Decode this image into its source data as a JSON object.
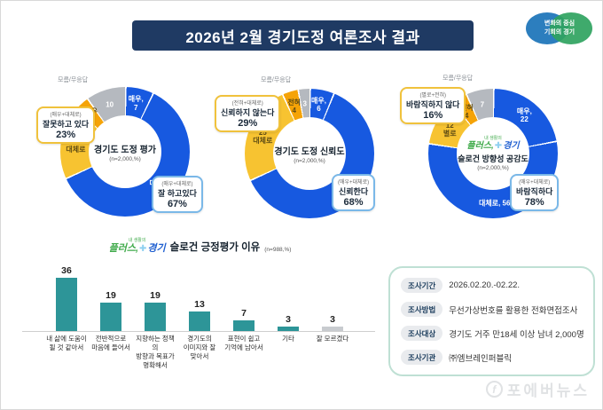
{
  "header": {
    "title": "2026년 2월 경기도정 여론조사 결과"
  },
  "gg_logo": {
    "line1": "변화의 중심",
    "line2": "기회의 경기"
  },
  "slogan_logo": {
    "tagline": "내 생활의",
    "plus_text": "플러스,",
    "plus_symbol": "✚",
    "region": "경기"
  },
  "colors": {
    "blue": "#1759e0",
    "yellow": "#f7c331",
    "orange": "#f5a307",
    "gray": "#b5b9bf",
    "navy": "#1f3a63",
    "teal": "#2d9598",
    "bar_gray": "#c8cbcf"
  },
  "chart_data": [
    {
      "type": "pie",
      "style": "donut",
      "title": "경기도 도정 평가",
      "n_label": "(n=2,000,%)",
      "outside_label": "모름/무응답",
      "segments": [
        {
          "name": "매우",
          "value": 7,
          "color": "blue",
          "lines": "매우,\n7"
        },
        {
          "name": "대체로",
          "value": 61,
          "color": "blue",
          "lines": "대체로,\n61"
        },
        {
          "name": "대체로",
          "value": 18,
          "color": "yellow",
          "lines": "18\n대체로"
        },
        {
          "name": "매우",
          "value": 4,
          "color": "orange",
          "lines": "매우\n4"
        },
        {
          "name": "모름/무응답",
          "value": 10,
          "color": "gray",
          "lines": "10"
        }
      ],
      "negative_callout": {
        "formula": "(매우+대체로)",
        "label": "잘못하고 있다",
        "pct": "23%"
      },
      "positive_callout": {
        "formula": "(매우+대체로)",
        "label": "잘 하고있다",
        "pct": "67%"
      }
    },
    {
      "type": "pie",
      "style": "donut",
      "title": "경기도 도정 신뢰도",
      "n_label": "(n=2,000,%)",
      "outside_label": "모름/무응답",
      "segments": [
        {
          "name": "매우",
          "value": 6,
          "color": "blue",
          "lines": "매우,\n6"
        },
        {
          "name": "대체로",
          "value": 62,
          "color": "blue",
          "lines": "대체로,\n62"
        },
        {
          "name": "대체로",
          "value": 25,
          "color": "yellow",
          "lines": "25\n대체로"
        },
        {
          "name": "전혀",
          "value": 4,
          "color": "orange",
          "lines": "전혀\n4"
        },
        {
          "name": "모름/무응답",
          "value": 3,
          "color": "gray",
          "lines": "3"
        }
      ],
      "negative_callout": {
        "formula": "(전혀+대체로)",
        "label": "신뢰하지 않는다",
        "pct": "29%"
      },
      "positive_callout": {
        "formula": "(매우+대체로)",
        "label": "신뢰한다",
        "pct": "68%"
      }
    },
    {
      "type": "pie",
      "style": "donut",
      "center_logo": true,
      "title": "슬로건 방향성 공감도",
      "n_label": "(n=2,000,%)",
      "outside_label": "모름/무응답",
      "segments": [
        {
          "name": "매우",
          "value": 22,
          "color": "blue",
          "lines": "매우,\n22"
        },
        {
          "name": "대체로",
          "value": 56,
          "color": "blue",
          "lines": "대체로, 56"
        },
        {
          "name": "별로",
          "value": 12,
          "color": "yellow",
          "lines": "12\n별로"
        },
        {
          "name": "전혀",
          "value": 4,
          "color": "orange",
          "lines": "전혀\n4"
        },
        {
          "name": "모름/무응답",
          "value": 7,
          "color": "gray",
          "lines": "7"
        }
      ],
      "negative_callout": {
        "formula": "(별로+전혀)",
        "label": "바람직하지 않다",
        "pct": "16%"
      },
      "positive_callout": {
        "formula": "(매우+대체로)",
        "label": "바람직하다",
        "pct": "78%"
      }
    },
    {
      "type": "bar",
      "title": "슬로건 긍정평가 이유",
      "n_label": "(n=988,%)",
      "categories": [
        "내 삶에 도움이\n될 것 같아서",
        "전반적으로\n마음에 들어서",
        "지향하는 정책의\n방향과 목표가\n명확해서",
        "경기도의\n이미지와 잘\n맞아서",
        "표현이 쉽고\n기억에 남아서",
        "기타",
        "잘 모르겠다"
      ],
      "values": [
        36,
        19,
        19,
        13,
        7,
        3,
        3
      ],
      "bar_colors": [
        "teal",
        "teal",
        "teal",
        "teal",
        "teal",
        "teal",
        "bar_gray"
      ],
      "ylim": [
        0,
        40
      ],
      "grid": false,
      "legend": "none"
    }
  ],
  "info_box": {
    "rows": [
      {
        "label": "조사기간",
        "value": "2026.02.20.-02.22."
      },
      {
        "label": "조사방법",
        "value": "무선가상번호를 활용한 전화면접조사"
      },
      {
        "label": "조사대상",
        "value": "경기도 거주 만18세 이상 남녀 2,000명"
      },
      {
        "label": "조사기관",
        "value": "㈜엠브레인퍼블릭"
      }
    ]
  },
  "watermark": {
    "icon": "f",
    "text": "포에버뉴스"
  }
}
